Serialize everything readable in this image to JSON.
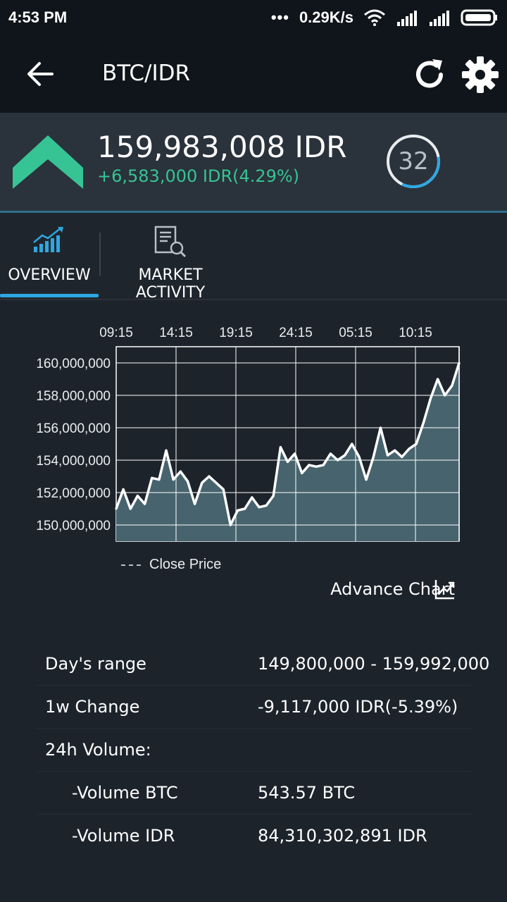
{
  "status_bar": {
    "time": "4:53 PM",
    "network_speed": "0.29K/s",
    "icons": [
      "more-dots-icon",
      "wifi-icon",
      "signal-icon",
      "signal-icon",
      "battery-icon"
    ]
  },
  "app_bar": {
    "title": "BTC/IDR",
    "icons": [
      "back-arrow-icon",
      "refresh-icon",
      "gear-icon"
    ]
  },
  "price": {
    "current": "159,983,008 IDR",
    "change": "+6,583,000 IDR(4.29%)",
    "change_color": "#36c494",
    "refresh_countdown": "32",
    "countdown_progress": 0.35,
    "trend_icon": "up-chevron-icon",
    "trend_color": "#36c494"
  },
  "tabs": [
    {
      "label": "OVERVIEW",
      "icon": "bar-chart-trend-icon",
      "active": true
    },
    {
      "label": "MARKET ACTIVITY",
      "icon": "document-search-icon",
      "active": false
    }
  ],
  "accent_color": "#2ea7e0",
  "chart_data": {
    "type": "area",
    "x_ticks": [
      "09:15",
      "14:15",
      "19:15",
      "24:15",
      "05:15",
      "10:15"
    ],
    "y_ticks": [
      "160,000,000",
      "158,000,000",
      "156,000,000",
      "154,000,000",
      "152,000,000",
      "150,000,000"
    ],
    "ylim": [
      149000000,
      161000000
    ],
    "series": [
      {
        "name": "Close Price",
        "values": [
          151000000,
          152200000,
          151000000,
          151800000,
          151300000,
          152900000,
          152800000,
          154600000,
          152800000,
          153300000,
          152700000,
          151300000,
          152600000,
          153000000,
          152600000,
          152200000,
          150000000,
          150900000,
          151000000,
          151700000,
          151100000,
          151200000,
          151800000,
          154800000,
          153900000,
          154400000,
          153200000,
          153700000,
          153600000,
          153700000,
          154400000,
          154000000,
          154300000,
          155000000,
          154200000,
          152800000,
          154200000,
          156000000,
          154300000,
          154600000,
          154200000,
          154700000,
          155000000,
          156300000,
          157800000,
          159000000,
          158000000,
          158600000,
          160000000
        ],
        "fill": "#47646e",
        "stroke": "#ffffff"
      }
    ],
    "grid": true,
    "legend_position": "bottom-left"
  },
  "advance_chart_label": "Advance Chart",
  "stats": {
    "days_range_label": "Day's range",
    "days_range_value": "149,800,000 - 159,992,000",
    "week_change_label": "1w Change",
    "week_change_value": "-9,117,000 IDR(-5.39%)",
    "volume_label": "24h Volume:",
    "volume_btc_label": "-Volume BTC",
    "volume_btc_value": "543.57 BTC",
    "volume_idr_label": "-Volume IDR",
    "volume_idr_value": "84,310,302,891 IDR"
  }
}
